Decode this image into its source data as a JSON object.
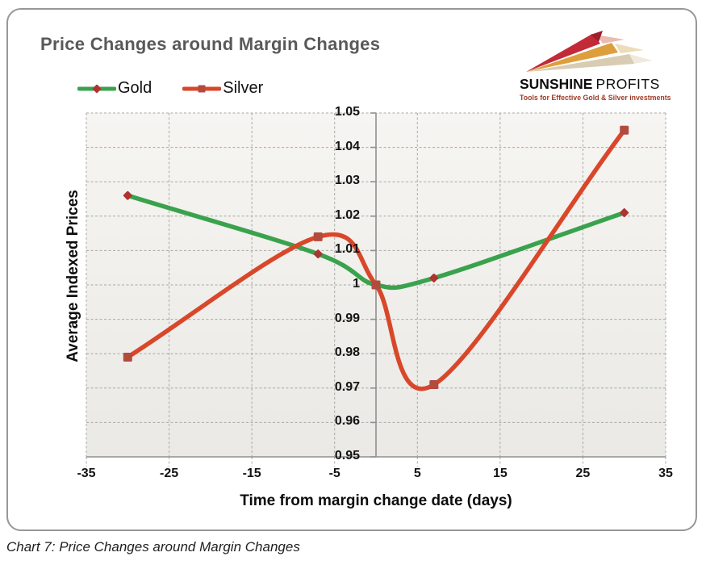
{
  "header": {
    "title": "Price Changes around Margin Changes"
  },
  "caption": "Chart 7: Price Changes around Margin Changes",
  "logo": {
    "name_bold": "SUNSHINE",
    "name_light": "PROFITS",
    "tagline": "Tools for Effective Gold & Silver investments",
    "colors": {
      "red": "#c22a38",
      "red_tip": "#9c1f2e",
      "gold": "#dd9e3c",
      "beige": "#d8ccb2",
      "echo_red": "#e9bcb2",
      "echo_gold": "#ecdcb8",
      "echo_beige": "#efeadc",
      "tagline": "#9e3b26"
    }
  },
  "chart_data": {
    "type": "line",
    "title": "Price Changes around Margin Changes",
    "xlabel": "Time from margin change date (days)",
    "ylabel": "Average Indexed Prices",
    "xlim": [
      -35,
      35
    ],
    "ylim": [
      0.95,
      1.05
    ],
    "x_ticks": [
      -35,
      -25,
      -15,
      -5,
      5,
      15,
      25,
      35
    ],
    "y_tick_labels": [
      "1.05",
      "1.04",
      "1.03",
      "1.02",
      "1.01",
      "1",
      "0.99",
      "0.98",
      "0.97",
      "0.96",
      "0.95"
    ],
    "grid": "dashed",
    "legend_position": "top-left",
    "line_style": "smoothed",
    "series": [
      {
        "name": "Gold",
        "color": "#3aa24d",
        "marker": "diamond",
        "marker_color": "#ac3431",
        "x": [
          -30,
          -7,
          0,
          7,
          30
        ],
        "y": [
          1.026,
          1.009,
          1.0,
          1.002,
          1.021
        ]
      },
      {
        "name": "Silver",
        "color": "#d9472b",
        "marker": "square",
        "marker_color": "#b24a3e",
        "x": [
          -30,
          -7,
          0,
          7,
          30
        ],
        "y": [
          0.979,
          1.014,
          1.0,
          0.971,
          1.045
        ]
      }
    ]
  }
}
